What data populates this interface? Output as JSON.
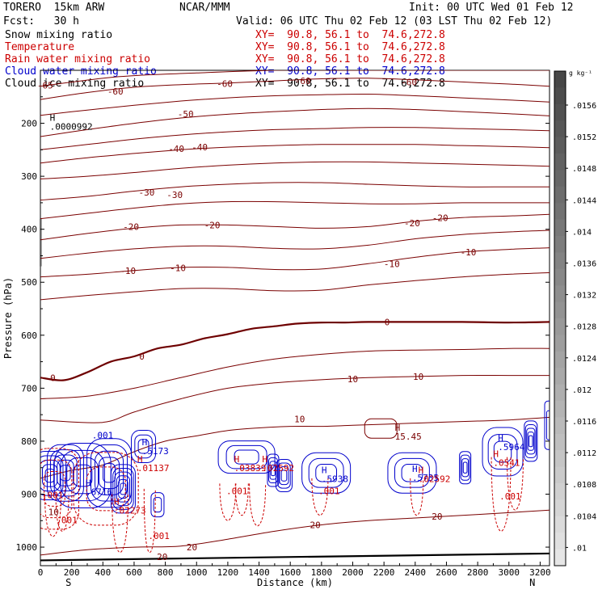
{
  "header": {
    "model": "TORERO  15km ARW",
    "center": "NCAR/MMM",
    "init": "Init: 00 UTC Wed 01 Feb 12",
    "fcst": "Fcst:   30 h",
    "valid": "Valid: 06 UTC Thu 02 Feb 12 (03 LST Thu 02 Feb 12)"
  },
  "fields": [
    {
      "name": "Snow mixing ratio",
      "xy": "XY=  90.8, 56.1 to  74.6,272.8",
      "color": "#000000"
    },
    {
      "name": "Temperature",
      "xy": "XY=  90.8, 56.1 to  74.6,272.8",
      "color": "#cc0000"
    },
    {
      "name": "Rain water mixing ratio",
      "xy": "XY=  90.8, 56.1 to  74.6,272.8",
      "color": "#cc0000"
    },
    {
      "name": "Cloud water mixing ratio",
      "xy": "XY=  90.8, 56.1 to  74.6,272.8",
      "color": "#0000cc"
    },
    {
      "name": "Cloud ice mixing ratio",
      "xy": "XY=  90.8, 56.1 to  74.6,272.8",
      "color": "#000000"
    }
  ],
  "colorbar": {
    "unit": "g kg⁻¹",
    "ticks": [
      "0.0156",
      "0.0152",
      "0.0148",
      "0.0144",
      "0.014",
      "0.0136",
      "0.0132",
      "0.0128",
      "0.0124",
      "0.012",
      "0.0116",
      "0.0112",
      "0.0108",
      "0.0104",
      "0.01"
    ],
    "tick_labels": [
      ".0156",
      ".0152",
      ".0148",
      ".0144",
      ".014",
      ".0136",
      ".0132",
      ".0128",
      ".0124",
      ".012",
      ".0116",
      ".0112",
      ".0108",
      ".0104",
      ".01"
    ]
  },
  "chart_data": {
    "type": "cross-section contour",
    "xlabel": "Distance (km)",
    "ylabel": "Pressure (hPa)",
    "xlim": [
      0,
      3260
    ],
    "ylim": [
      1035,
      100
    ],
    "x_ticks": [
      "0",
      "200",
      "400",
      "600",
      "800",
      "1000",
      "1200",
      "1400",
      "1600",
      "1800",
      "2000",
      "2200",
      "2400",
      "2600",
      "2800",
      "3000",
      "3200"
    ],
    "y_ticks": [
      "200",
      "300",
      "400",
      "500",
      "600",
      "700",
      "800",
      "900",
      "1000"
    ],
    "left_end_label": "S",
    "right_end_label": "N",
    "surface_pressure": [
      [
        0,
        1025
      ],
      [
        3260,
        1012
      ]
    ],
    "temperature_contours": [
      {
        "level": -65,
        "x": [
          0,
          500,
          1000,
          1500,
          2000,
          2500,
          3000,
          3260
        ],
        "p": [
          130,
          112,
          105,
          100,
          100,
          100,
          100,
          100
        ]
      },
      {
        "level": -60,
        "x": [
          0,
          300,
          600,
          900,
          1200,
          1500,
          1800,
          2100,
          2400,
          2700,
          3000,
          3260
        ],
        "p": [
          155,
          142,
          132,
          127,
          124,
          120,
          116,
          115,
          118,
          122,
          126,
          130
        ]
      },
      {
        "level": -55,
        "x": [
          0,
          300,
          600,
          900,
          1200,
          1500,
          1800,
          2100,
          2400,
          2700,
          3000,
          3260
        ],
        "p": [
          185,
          175,
          166,
          158,
          152,
          148,
          146,
          145,
          148,
          152,
          156,
          160
        ]
      },
      {
        "level": -50,
        "x": [
          0,
          300,
          600,
          900,
          1200,
          1500,
          1800,
          2100,
          2400,
          2700,
          3000,
          3260
        ],
        "p": [
          225,
          212,
          200,
          190,
          183,
          178,
          174,
          172,
          174,
          178,
          182,
          186
        ]
      },
      {
        "level": -45,
        "x": [
          0,
          300,
          600,
          900,
          1200,
          1500,
          1800,
          2100,
          2400,
          2700,
          3000,
          3260
        ],
        "p": [
          250,
          240,
          230,
          222,
          216,
          212,
          210,
          208,
          208,
          210,
          212,
          214
        ]
      },
      {
        "level": -40,
        "x": [
          0,
          300,
          600,
          900,
          1200,
          1500,
          1800,
          2100,
          2400,
          2700,
          3000,
          3260
        ],
        "p": [
          275,
          265,
          257,
          250,
          245,
          242,
          240,
          240,
          240,
          242,
          244,
          246
        ]
      },
      {
        "level": -35,
        "x": [
          0,
          300,
          600,
          900,
          1200,
          1500,
          1800,
          2100,
          2400,
          2700,
          3000,
          3260
        ],
        "p": [
          305,
          300,
          293,
          285,
          279,
          275,
          273,
          273,
          275,
          277,
          279,
          281
        ]
      },
      {
        "level": -30,
        "x": [
          0,
          300,
          600,
          900,
          1200,
          1500,
          1800,
          2100,
          2400,
          2700,
          3000,
          3260
        ],
        "p": [
          345,
          338,
          328,
          320,
          315,
          312,
          312,
          315,
          318,
          320,
          320,
          320
        ]
      },
      {
        "level": -25,
        "x": [
          0,
          300,
          600,
          900,
          1200,
          1500,
          1800,
          2100,
          2400,
          2700,
          3000,
          3260
        ],
        "p": [
          380,
          370,
          360,
          352,
          348,
          348,
          350,
          352,
          352,
          350,
          350,
          350
        ]
      },
      {
        "level": -20,
        "x": [
          0,
          300,
          600,
          900,
          1200,
          1500,
          1800,
          2100,
          2400,
          2700,
          3000,
          3260
        ],
        "p": [
          420,
          408,
          398,
          392,
          392,
          395,
          398,
          395,
          385,
          378,
          375,
          372
        ]
      },
      {
        "level": -15,
        "x": [
          0,
          300,
          600,
          900,
          1200,
          1500,
          1800,
          2100,
          2400,
          2700,
          3000,
          3260
        ],
        "p": [
          455,
          445,
          437,
          432,
          432,
          436,
          437,
          430,
          418,
          410,
          405,
          402
        ]
      },
      {
        "level": -10,
        "x": [
          0,
          300,
          600,
          900,
          1200,
          1500,
          1800,
          2100,
          2400,
          2700,
          3000,
          3260
        ],
        "p": [
          490,
          485,
          478,
          472,
          472,
          476,
          475,
          465,
          453,
          443,
          438,
          435
        ]
      },
      {
        "level": -5,
        "x": [
          0,
          300,
          600,
          900,
          1200,
          1500,
          1800,
          2100,
          2400,
          2700,
          3000,
          3260
        ],
        "p": [
          533,
          525,
          518,
          512,
          512,
          516,
          515,
          505,
          497,
          490,
          485,
          482
        ]
      },
      {
        "level": 0,
        "x": [
          0,
          150,
          300,
          450,
          600,
          750,
          900,
          1050,
          1200,
          1350,
          1500,
          1650,
          1800,
          1950,
          2100,
          2400,
          2700,
          3000,
          3260
        ],
        "p": [
          680,
          685,
          670,
          650,
          640,
          625,
          618,
          606,
          598,
          588,
          583,
          578,
          576,
          576,
          575,
          575,
          575,
          576,
          575
        ]
      },
      {
        "level": 5,
        "x": [
          0,
          300,
          600,
          900,
          1200,
          1500,
          1800,
          2100,
          2400,
          2700,
          3000,
          3260
        ],
        "p": [
          720,
          715,
          700,
          680,
          660,
          645,
          636,
          630,
          628,
          627,
          625,
          625
        ]
      },
      {
        "level": 10,
        "x": [
          0,
          300,
          450,
          600,
          900,
          1200,
          1500,
          1800,
          2100,
          2400,
          2700,
          3000,
          3260
        ],
        "p": [
          760,
          765,
          762,
          745,
          720,
          700,
          690,
          684,
          680,
          678,
          676,
          676,
          676
        ]
      },
      {
        "level": 15,
        "x": [
          0,
          200,
          400,
          600,
          800,
          1000,
          1200,
          1400,
          1600,
          1800,
          2000,
          2200,
          2400,
          2600,
          2800,
          3000,
          3260
        ],
        "p": [
          870,
          855,
          845,
          820,
          800,
          790,
          780,
          775,
          772,
          772,
          770,
          768,
          766,
          764,
          762,
          760,
          755
        ]
      },
      {
        "level": 20,
        "x": [
          0,
          300,
          600,
          900,
          1200,
          1500,
          1800,
          2100,
          2400,
          2700,
          3000,
          3260
        ],
        "p": [
          1015,
          1005,
          1000,
          998,
          985,
          970,
          958,
          950,
          945,
          940,
          935,
          930
        ]
      }
    ],
    "temperature_labels": [
      {
        "text": "-65",
        "x": 30,
        "p": 128
      },
      {
        "text": "-60",
        "x": 480,
        "p": 140
      },
      {
        "text": "-60",
        "x": 1180,
        "p": 125
      },
      {
        "text": "-60",
        "x": 1680,
        "p": 120
      },
      {
        "text": "-60",
        "x": 2360,
        "p": 122
      },
      {
        "text": "-50",
        "x": 930,
        "p": 182
      },
      {
        "text": "-40",
        "x": 870,
        "p": 248
      },
      {
        "text": "-40",
        "x": 1020,
        "p": 245
      },
      {
        "text": "-30",
        "x": 680,
        "p": 330
      },
      {
        "text": "-30",
        "x": 860,
        "p": 335
      },
      {
        "text": "-20",
        "x": 580,
        "p": 395
      },
      {
        "text": "-20",
        "x": 1100,
        "p": 392
      },
      {
        "text": "-20",
        "x": 2380,
        "p": 388
      },
      {
        "text": "-20",
        "x": 2560,
        "p": 378
      },
      {
        "text": "-10",
        "x": 560,
        "p": 478
      },
      {
        "text": "-10",
        "x": 880,
        "p": 473
      },
      {
        "text": "-10",
        "x": 2250,
        "p": 465
      },
      {
        "text": "-10",
        "x": 2740,
        "p": 443
      },
      {
        "text": "0",
        "x": 650,
        "p": 640
      },
      {
        "text": "0",
        "x": 80,
        "p": 680
      },
      {
        "text": "0",
        "x": 2220,
        "p": 575
      },
      {
        "text": "10",
        "x": 2000,
        "p": 683
      },
      {
        "text": "10",
        "x": 2420,
        "p": 678
      },
      {
        "text": "10",
        "x": 1660,
        "p": 758
      },
      {
        "text": "20",
        "x": 1760,
        "p": 958
      },
      {
        "text": "20",
        "x": 2540,
        "p": 942
      },
      {
        "text": "20",
        "x": 970,
        "p": 1000
      },
      {
        "text": "20",
        "x": 780,
        "p": 1018
      }
    ],
    "max_labels": [
      {
        "text": "H",
        "x": 60,
        "p": 195,
        "sub": ".0000992",
        "color": "#000000"
      },
      {
        "text": "H",
        "x": 2270,
        "p": 780,
        "sub": "15.45",
        "color": "#7a0000"
      },
      {
        "text": "H",
        "x": 650,
        "p": 808,
        "sub": ".5173",
        "color": "#0000cc"
      },
      {
        "text": "H",
        "x": 290,
        "p": 885,
        "sub": ".6716",
        "color": "#0000cc"
      },
      {
        "text": "H",
        "x": 1800,
        "p": 860,
        "sub": ".5938",
        "color": "#0000cc"
      },
      {
        "text": "H",
        "x": 2380,
        "p": 858,
        "sub": ".5735",
        "color": "#0000cc"
      },
      {
        "text": "H",
        "x": 2930,
        "p": 800,
        "sub": ".5964",
        "color": "#0000cc"
      },
      {
        "text": "H",
        "x": 620,
        "p": 840,
        "sub": ".01137",
        "color": "#cc0000"
      },
      {
        "text": "H",
        "x": 470,
        "p": 920,
        "sub": ".02273",
        "color": "#cc0000"
      },
      {
        "text": "H",
        "x": 1240,
        "p": 840,
        "sub": ".03839",
        "color": "#cc0000"
      },
      {
        "text": "H",
        "x": 1420,
        "p": 840,
        "sub": ".02592",
        "color": "#cc0000"
      },
      {
        "text": "H",
        "x": 2420,
        "p": 860,
        "sub": ".02592",
        "color": "#cc0000"
      },
      {
        "text": "H",
        "x": 2900,
        "p": 830,
        "sub": ".0541",
        "color": "#cc0000"
      }
    ],
    "minor_labels": [
      {
        "text": ".001",
        "x": 330,
        "p": 795,
        "color": "#0000cc"
      },
      {
        "text": ".001",
        "x": 10,
        "p": 908,
        "color": "#cc0000"
      },
      {
        "text": ".001",
        "x": 100,
        "p": 955,
        "color": "#cc0000"
      },
      {
        "text": ".001",
        "x": 690,
        "p": 985,
        "color": "#cc0000"
      },
      {
        "text": ".001",
        "x": 1190,
        "p": 900,
        "color": "#cc0000"
      },
      {
        "text": ".001",
        "x": 1780,
        "p": 900,
        "color": "#cc0000"
      },
      {
        "text": ".001",
        "x": 2940,
        "p": 910,
        "color": "#cc0000"
      },
      {
        "text": "10",
        "x": 50,
        "p": 940,
        "color": "#7a0000"
      }
    ]
  }
}
